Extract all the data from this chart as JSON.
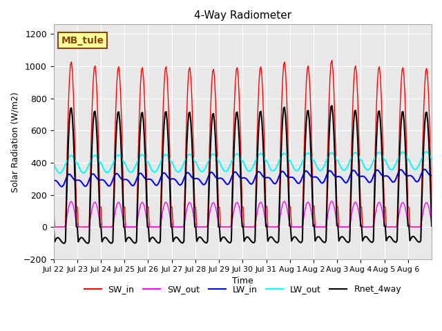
{
  "title": "4-Way Radiometer",
  "xlabel": "Time",
  "ylabel": "Solar Radiation (W/m2)",
  "ylim": [
    -200,
    1260
  ],
  "yticks": [
    -200,
    0,
    200,
    400,
    600,
    800,
    1000,
    1200
  ],
  "annotation_text": "MB_tule",
  "annotation_color": "#8B4513",
  "annotation_bg": "#FFFF99",
  "annotation_border": "#8B4513",
  "n_days": 16,
  "xtick_labels": [
    "Jul 22",
    "Jul 23",
    "Jul 24",
    "Jul 25",
    "Jul 26",
    "Jul 27",
    "Jul 28",
    "Jul 29",
    "Jul 30",
    "Jul 31",
    "Aug 1",
    "Aug 2",
    "Aug 3",
    "Aug 4",
    "Aug 5",
    "Aug 6"
  ],
  "xtick_positions": [
    0,
    1,
    2,
    3,
    4,
    5,
    6,
    7,
    8,
    9,
    10,
    11,
    12,
    13,
    14,
    15
  ],
  "colors": {
    "SW_in": "#FF0000",
    "SW_out": "#FF00FF",
    "LW_in": "#0000FF",
    "LW_out": "#00FFFF",
    "Rnet_4way": "#000000"
  },
  "line_widths": {
    "SW_in": 1.0,
    "SW_out": 1.0,
    "LW_in": 1.5,
    "LW_out": 1.5,
    "Rnet_4way": 1.5
  },
  "SW_in_peaks": [
    1030,
    1005,
    1000,
    995,
    1000,
    995,
    985,
    995,
    1000,
    1030,
    1005,
    1040,
    1005,
    1000,
    995,
    990
  ]
}
